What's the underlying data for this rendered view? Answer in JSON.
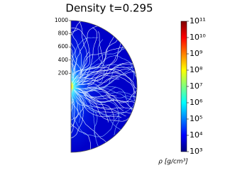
{
  "chart_data": {
    "type": "field",
    "title": "Density t=0.295",
    "ylim": [
      0,
      1000
    ],
    "yticks": [
      200,
      400,
      600,
      800,
      1000
    ],
    "colorbar": {
      "label": "ρ [g/cm³]",
      "log": true,
      "colormap": "jet",
      "clim": [
        1000,
        100000000000
      ],
      "ticks": [
        {
          "value": 1000,
          "label": "10³"
        },
        {
          "value": 10000,
          "label": "10⁴"
        },
        {
          "value": 100000,
          "label": "10⁵"
        },
        {
          "value": 1000000,
          "label": "10⁶"
        },
        {
          "value": 10000000,
          "label": "10⁷"
        },
        {
          "value": 100000000,
          "label": "10⁸"
        },
        {
          "value": 1000000000,
          "label": "10⁹"
        },
        {
          "value": 10000000000,
          "label": "10¹⁰"
        },
        {
          "value": 100000000000,
          "label": "10¹¹"
        }
      ]
    }
  }
}
